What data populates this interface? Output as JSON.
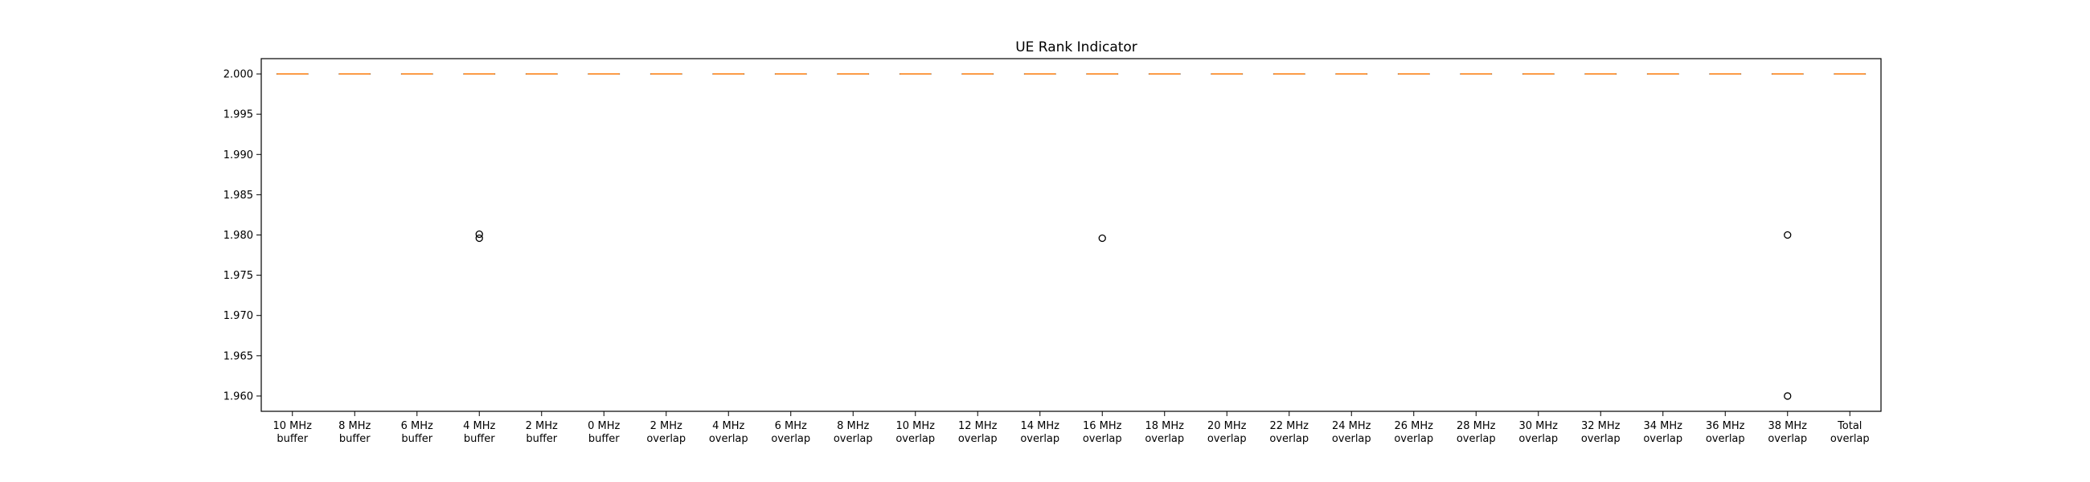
{
  "chart_data": {
    "type": "box",
    "title": "UE Rank Indicator",
    "xlabel": "",
    "ylabel": "",
    "ylim": [
      1.9581,
      2.0019
    ],
    "yticks": [
      "2.000",
      "1.995",
      "1.990",
      "1.985",
      "1.980",
      "1.975",
      "1.970",
      "1.965",
      "1.960"
    ],
    "ytick_values": [
      2.0,
      1.995,
      1.99,
      1.985,
      1.98,
      1.975,
      1.97,
      1.965,
      1.96
    ],
    "categories": [
      [
        "10 MHz",
        "buffer"
      ],
      [
        "8 MHz",
        "buffer"
      ],
      [
        "6 MHz",
        "buffer"
      ],
      [
        "4 MHz",
        "buffer"
      ],
      [
        "2 MHz",
        "buffer"
      ],
      [
        "0 MHz",
        "buffer"
      ],
      [
        "2 MHz",
        "overlap"
      ],
      [
        "4 MHz",
        "overlap"
      ],
      [
        "6 MHz",
        "overlap"
      ],
      [
        "8 MHz",
        "overlap"
      ],
      [
        "10 MHz",
        "overlap"
      ],
      [
        "12 MHz",
        "overlap"
      ],
      [
        "14 MHz",
        "overlap"
      ],
      [
        "16 MHz",
        "overlap"
      ],
      [
        "18 MHz",
        "overlap"
      ],
      [
        "20 MHz",
        "overlap"
      ],
      [
        "22 MHz",
        "overlap"
      ],
      [
        "24 MHz",
        "overlap"
      ],
      [
        "26 MHz",
        "overlap"
      ],
      [
        "28 MHz",
        "overlap"
      ],
      [
        "30 MHz",
        "overlap"
      ],
      [
        "32 MHz",
        "overlap"
      ],
      [
        "34 MHz",
        "overlap"
      ],
      [
        "36 MHz",
        "overlap"
      ],
      [
        "38 MHz",
        "overlap"
      ],
      [
        "Total",
        "overlap"
      ]
    ],
    "medians": [
      2.0,
      2.0,
      2.0,
      2.0,
      2.0,
      2.0,
      2.0,
      2.0,
      2.0,
      2.0,
      2.0,
      2.0,
      2.0,
      2.0,
      2.0,
      2.0,
      2.0,
      2.0,
      2.0,
      2.0,
      2.0,
      2.0,
      2.0,
      2.0,
      2.0,
      2.0
    ],
    "q1": [
      2.0,
      2.0,
      2.0,
      2.0,
      2.0,
      2.0,
      2.0,
      2.0,
      2.0,
      2.0,
      2.0,
      2.0,
      2.0,
      2.0,
      2.0,
      2.0,
      2.0,
      2.0,
      2.0,
      2.0,
      2.0,
      2.0,
      2.0,
      2.0,
      2.0,
      2.0
    ],
    "q3": [
      2.0,
      2.0,
      2.0,
      2.0,
      2.0,
      2.0,
      2.0,
      2.0,
      2.0,
      2.0,
      2.0,
      2.0,
      2.0,
      2.0,
      2.0,
      2.0,
      2.0,
      2.0,
      2.0,
      2.0,
      2.0,
      2.0,
      2.0,
      2.0,
      2.0,
      2.0
    ],
    "outliers": [
      [],
      [],
      [],
      [
        1.9801,
        1.9796
      ],
      [],
      [],
      [],
      [],
      [],
      [],
      [],
      [],
      [],
      [
        1.9796
      ],
      [],
      [],
      [],
      [],
      [],
      [],
      [],
      [],
      [],
      [],
      [
        1.98,
        1.96
      ],
      []
    ],
    "grid": false,
    "legend": "none",
    "colors": {
      "median": "#ff7f0e",
      "box": "#000000",
      "outlier": "#000000"
    }
  }
}
